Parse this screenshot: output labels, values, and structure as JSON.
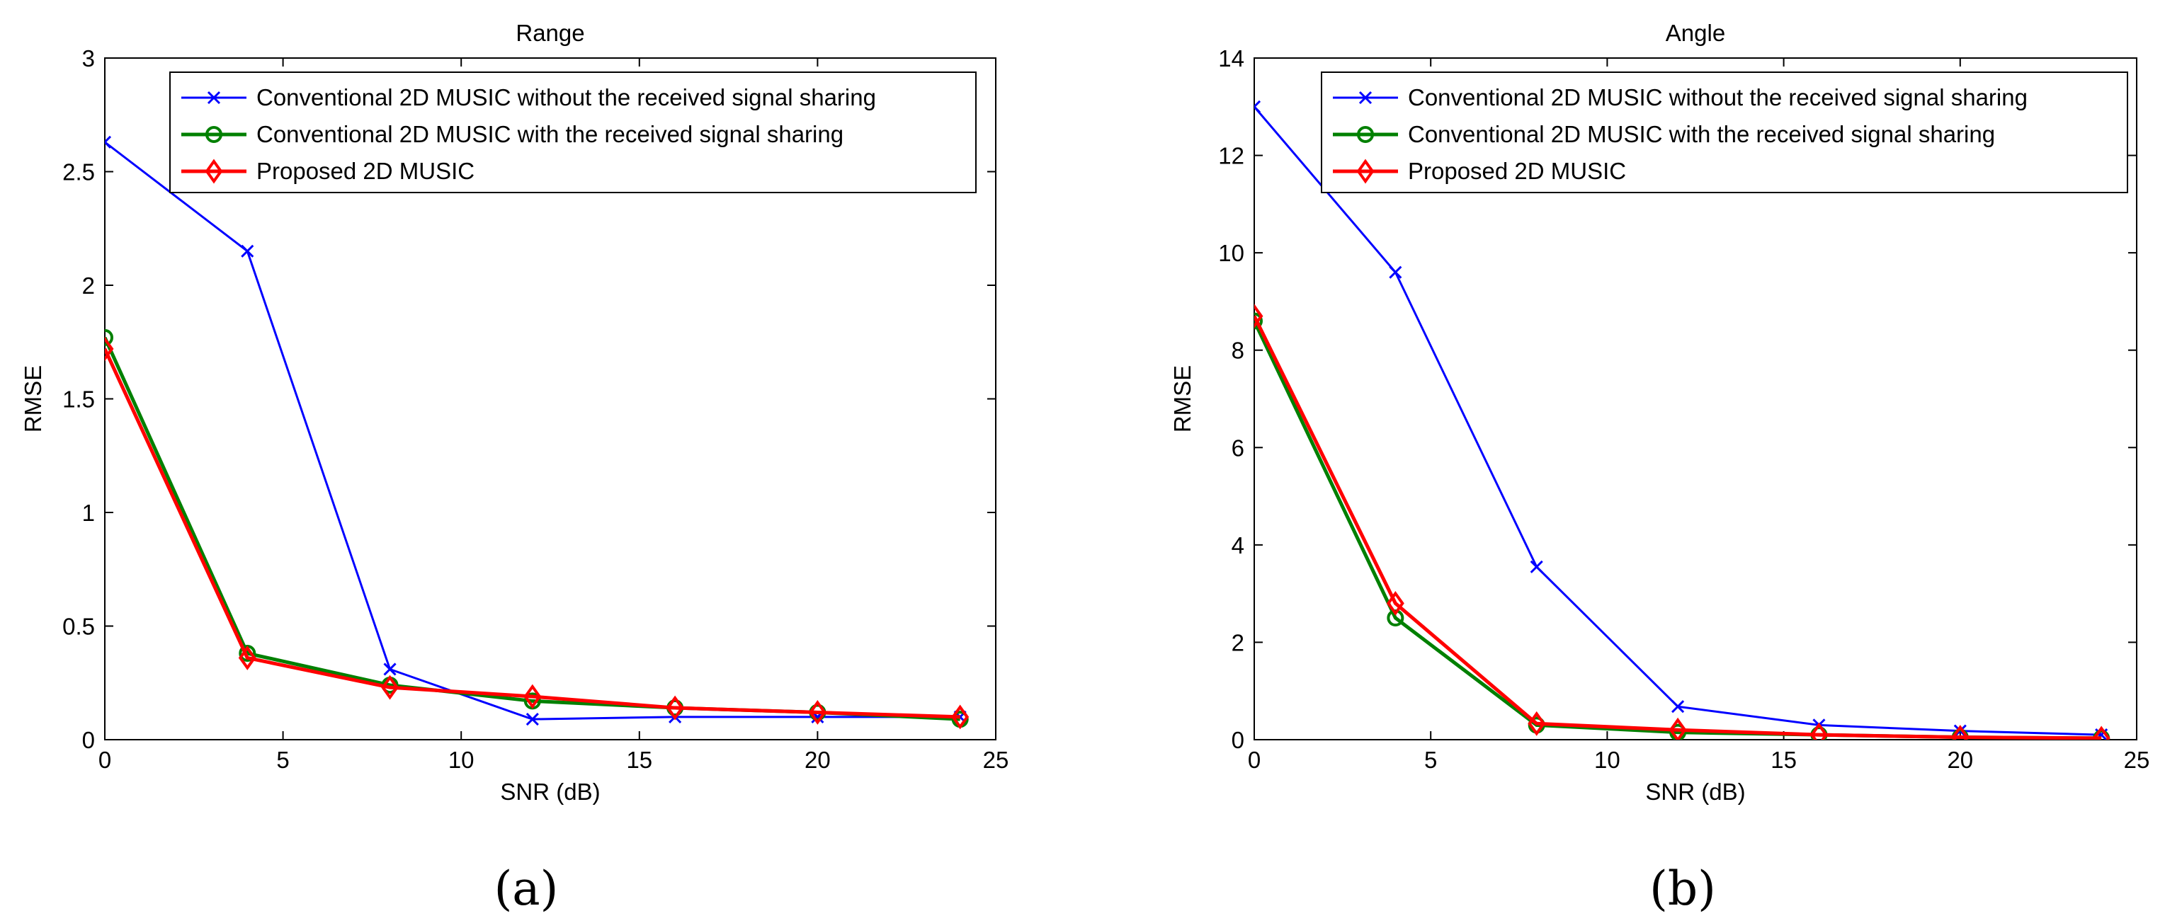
{
  "chart_data": [
    {
      "type": "line",
      "panel_label": "(a)",
      "title": "Range",
      "xlabel": "SNR (dB)",
      "ylabel": "RMSE",
      "xlim": [
        0,
        25
      ],
      "ylim": [
        0,
        3
      ],
      "xticks": [
        "0",
        "5",
        "10",
        "15",
        "20",
        "25"
      ],
      "yticks": [
        "0",
        "0.5",
        "1",
        "1.5",
        "2",
        "2.5",
        "3"
      ],
      "grid": false,
      "legend_position": "top-right",
      "x": [
        0,
        4,
        8,
        12,
        16,
        20,
        24
      ],
      "series": [
        {
          "name": "Conventional 2D MUSIC without the received signal sharing",
          "color": "#0000ff",
          "marker": "x",
          "values": [
            2.63,
            2.15,
            0.31,
            0.09,
            0.1,
            0.1,
            0.1
          ]
        },
        {
          "name": "Conventional 2D MUSIC with the received signal sharing",
          "color": "#008000",
          "marker": "o",
          "values": [
            1.77,
            0.38,
            0.24,
            0.17,
            0.14,
            0.12,
            0.09
          ]
        },
        {
          "name": "Proposed 2D MUSIC",
          "color": "#ff0000",
          "marker": "diamond",
          "values": [
            1.72,
            0.36,
            0.23,
            0.19,
            0.14,
            0.12,
            0.1
          ]
        }
      ]
    },
    {
      "type": "line",
      "panel_label": "(b)",
      "title": "Angle",
      "xlabel": "SNR (dB)",
      "ylabel": "RMSE",
      "xlim": [
        0,
        25
      ],
      "ylim": [
        0,
        14
      ],
      "xticks": [
        "0",
        "5",
        "10",
        "15",
        "20",
        "25"
      ],
      "yticks": [
        "0",
        "2",
        "4",
        "6",
        "8",
        "10",
        "12",
        "14"
      ],
      "grid": false,
      "legend_position": "top-right",
      "x": [
        0,
        4,
        8,
        12,
        16,
        20,
        24
      ],
      "series": [
        {
          "name": "Conventional 2D MUSIC without the received signal sharing",
          "color": "#0000ff",
          "marker": "x",
          "values": [
            13.0,
            9.6,
            3.55,
            0.68,
            0.3,
            0.18,
            0.1
          ]
        },
        {
          "name": "Conventional 2D MUSIC with the received signal sharing",
          "color": "#008000",
          "marker": "o",
          "values": [
            8.6,
            2.5,
            0.3,
            0.15,
            0.1,
            0.05,
            0.03
          ]
        },
        {
          "name": "Proposed 2D MUSIC",
          "color": "#ff0000",
          "marker": "diamond",
          "values": [
            8.7,
            2.8,
            0.33,
            0.2,
            0.1,
            0.05,
            0.03
          ]
        }
      ]
    }
  ]
}
